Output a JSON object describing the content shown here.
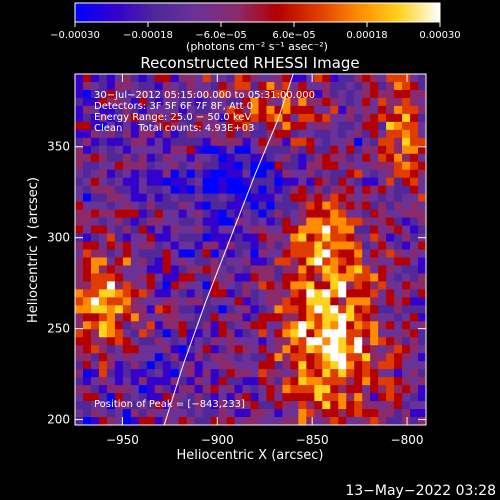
{
  "colors": {
    "background": "#000000",
    "text": "#ffffff",
    "colormap": [
      "#0000ff",
      "#3300cc",
      "#50289a",
      "#6a3296",
      "#8a2a6a",
      "#b40000",
      "#e03c00",
      "#ff8c00",
      "#ffd21e",
      "#ffffff"
    ]
  },
  "chart_data": {
    "type": "heatmap",
    "title": "Reconstructed RHESSI Image",
    "xlabel": "Heliocentric X (arcsec)",
    "ylabel": "Heliocentric Y (arcsec)",
    "xlim": [
      -975,
      -790
    ],
    "ylim": [
      197,
      390
    ],
    "xticks": [
      -950,
      -900,
      -850,
      -800
    ],
    "xtick_labels": [
      "−950",
      "−900",
      "−850",
      "−800"
    ],
    "yticks": [
      200,
      250,
      300,
      350
    ],
    "ytick_labels": [
      "200",
      "250",
      "300",
      "350"
    ],
    "colorbar": {
      "range": [
        -0.0003,
        0.0003
      ],
      "tick_values": [
        -0.0003,
        -0.00018,
        -6e-05,
        6e-05,
        0.00018,
        0.0003
      ],
      "tick_labels": [
        "−0.00030",
        "−0.00018",
        "−6.0e−05",
        "6.0e−05",
        "0.00018",
        "0.00030"
      ],
      "units": "(photons cm⁻² s⁻¹ asec⁻²)"
    },
    "annotations": [
      "30−Jul−2012 05:15:00.000 to 05:31:00.000",
      "Detectors: 3F 5F 6F 7F 8F, Att 0",
      "Energy Range: 25.0 − 50.0 keV",
      "Clean     Total counts: 4.93E+03"
    ],
    "peak_label": "Position of Peak = [−843,233]",
    "peak": {
      "x": -843,
      "y": 233
    },
    "limb_points": [
      [
        -928,
        197
      ],
      [
        -918,
        230
      ],
      [
        -906,
        265
      ],
      [
        -893,
        300
      ],
      [
        -880,
        335
      ],
      [
        -868,
        365
      ],
      [
        -860,
        390
      ]
    ],
    "grid": false
  },
  "timestamp": "13−May−2022 03:28"
}
